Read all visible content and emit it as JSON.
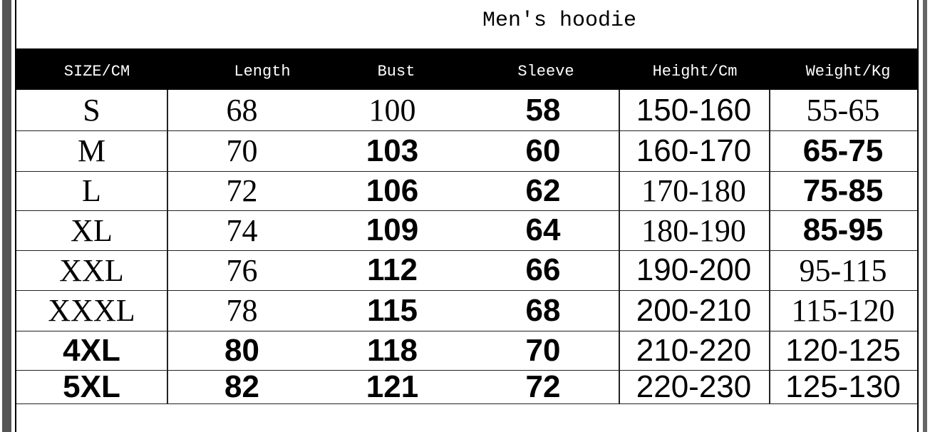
{
  "title": "Men's hoodie",
  "columns": [
    "SIZE/CM",
    "Length",
    "Bust",
    "Sleeve",
    "Height/Cm",
    "Weight/Kg"
  ],
  "rows": [
    [
      "S",
      "68",
      "100",
      "58",
      "150-160",
      "55-65"
    ],
    [
      "M",
      "70",
      "103",
      "60",
      "160-170",
      "65-75"
    ],
    [
      "L",
      "72",
      "106",
      "62",
      "170-180",
      "75-85"
    ],
    [
      "XL",
      "74",
      "109",
      "64",
      "180-190",
      "85-95"
    ],
    [
      "XXL",
      "76",
      "112",
      "66",
      "190-200",
      "95-115"
    ],
    [
      "XXXL",
      "78",
      "115",
      "68",
      "200-210",
      "115-120"
    ],
    [
      "4XL",
      "80",
      "118",
      "70",
      "210-220",
      "120-125"
    ],
    [
      "5XL",
      "82",
      "121",
      "72",
      "220-230",
      "125-130"
    ]
  ]
}
